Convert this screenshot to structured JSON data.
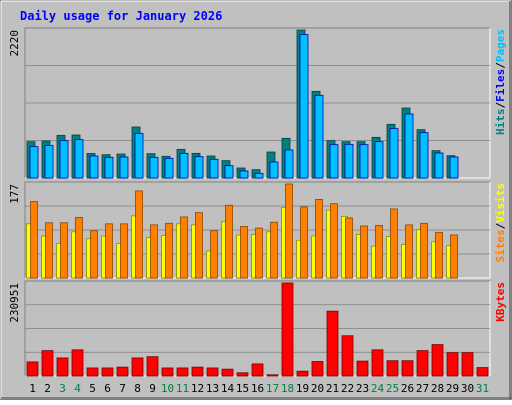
{
  "title": "Daily usage for January 2026",
  "colors": {
    "background": "#ffffff",
    "plot_bg": "#c0c0c0",
    "title": "#0000ff",
    "hits": "#008080",
    "files": "#0000ff",
    "pages": "#00c0ff",
    "sites": "#ff8000",
    "visits": "#ffff00",
    "kbytes": "#ff0000",
    "weekend_label": "#008040",
    "weekday_label": "#000000"
  },
  "chart_data": [
    {
      "type": "bar",
      "panel": "hits-files-pages",
      "ymax_label": "2220",
      "ylim": [
        0,
        2220
      ],
      "legend": [
        {
          "label": "Hits",
          "color": "#008080"
        },
        {
          "label": "Files",
          "color": "#0000ff"
        },
        {
          "label": "Pages",
          "color": "#00c0ff"
        }
      ],
      "categories": [
        "1",
        "2",
        "3",
        "4",
        "5",
        "6",
        "7",
        "8",
        "9",
        "10",
        "11",
        "12",
        "13",
        "14",
        "15",
        "16",
        "17",
        "18",
        "19",
        "20",
        "21",
        "22",
        "23",
        "24",
        "25",
        "26",
        "27",
        "28",
        "29",
        "30",
        "31"
      ],
      "series": [
        {
          "name": "Hits",
          "values": [
            545,
            555,
            640,
            645,
            368,
            350,
            360,
            765,
            365,
            325,
            430,
            370,
            330,
            260,
            150,
            125,
            390,
            595,
            2220,
            1300,
            560,
            545,
            545,
            610,
            805,
            1050,
            725,
            410,
            335,
            0,
            0
          ]
        },
        {
          "name": "Pages",
          "values": [
            470,
            490,
            560,
            575,
            330,
            310,
            315,
            670,
            310,
            295,
            370,
            320,
            280,
            185,
            105,
            70,
            240,
            420,
            2150,
            1240,
            500,
            505,
            500,
            545,
            740,
            960,
            680,
            375,
            315,
            0,
            0
          ]
        }
      ]
    },
    {
      "type": "bar",
      "panel": "sites-visits",
      "ymax_label": "177",
      "ylim": [
        0,
        177
      ],
      "legend": [
        {
          "label": "Sites",
          "color": "#ff8000"
        },
        {
          "label": "Visits",
          "color": "#ffff00"
        }
      ],
      "categories": [
        "1",
        "2",
        "3",
        "4",
        "5",
        "6",
        "7",
        "8",
        "9",
        "10",
        "11",
        "12",
        "13",
        "14",
        "15",
        "16",
        "17",
        "18",
        "19",
        "20",
        "21",
        "22",
        "23",
        "24",
        "25",
        "26",
        "27",
        "28",
        "29",
        "30",
        "31"
      ],
      "series": [
        {
          "name": "Visits",
          "values": [
            102,
            79,
            65,
            87,
            74,
            79,
            65,
            117,
            76,
            80,
            102,
            100,
            51,
            106,
            81,
            82,
            87,
            133,
            71,
            79,
            128,
            116,
            82,
            60,
            78,
            63,
            91,
            68,
            61,
            0,
            0
          ]
        },
        {
          "name": "Sites",
          "values": [
            144,
            104,
            104,
            114,
            89,
            102,
            102,
            164,
            100,
            103,
            115,
            123,
            89,
            137,
            97,
            94,
            105,
            177,
            134,
            148,
            140,
            113,
            98,
            99,
            130,
            100,
            103,
            86,
            81,
            0,
            0
          ]
        }
      ]
    },
    {
      "type": "bar",
      "panel": "kbytes",
      "ymax_label": "230951",
      "ylim": [
        0,
        230951
      ],
      "legend": [
        {
          "label": "KBytes",
          "color": "#ff0000"
        }
      ],
      "categories": [
        "1",
        "2",
        "3",
        "4",
        "5",
        "6",
        "7",
        "8",
        "9",
        "10",
        "11",
        "12",
        "13",
        "14",
        "15",
        "16",
        "17",
        "18",
        "19",
        "20",
        "21",
        "22",
        "23",
        "24",
        "25",
        "26",
        "27",
        "28",
        "29",
        "30",
        "31"
      ],
      "series": [
        {
          "name": "KBytes",
          "values": [
            35000,
            63000,
            45000,
            65000,
            20000,
            20000,
            22000,
            45000,
            48000,
            20000,
            20000,
            22000,
            20000,
            17000,
            8000,
            30000,
            3000,
            230951,
            12000,
            36000,
            161000,
            100000,
            37000,
            65000,
            38000,
            38000,
            63000,
            78000,
            58000,
            58000,
            21000
          ]
        }
      ]
    }
  ],
  "x_labels": [
    {
      "label": "1",
      "weekend": false
    },
    {
      "label": "2",
      "weekend": false
    },
    {
      "label": "3",
      "weekend": true
    },
    {
      "label": "4",
      "weekend": true
    },
    {
      "label": "5",
      "weekend": false
    },
    {
      "label": "6",
      "weekend": false
    },
    {
      "label": "7",
      "weekend": false
    },
    {
      "label": "8",
      "weekend": false
    },
    {
      "label": "9",
      "weekend": false
    },
    {
      "label": "10",
      "weekend": true
    },
    {
      "label": "11",
      "weekend": true
    },
    {
      "label": "12",
      "weekend": false
    },
    {
      "label": "13",
      "weekend": false
    },
    {
      "label": "14",
      "weekend": false
    },
    {
      "label": "15",
      "weekend": false
    },
    {
      "label": "16",
      "weekend": false
    },
    {
      "label": "17",
      "weekend": true
    },
    {
      "label": "18",
      "weekend": true
    },
    {
      "label": "19",
      "weekend": false
    },
    {
      "label": "20",
      "weekend": false
    },
    {
      "label": "21",
      "weekend": false
    },
    {
      "label": "22",
      "weekend": false
    },
    {
      "label": "23",
      "weekend": false
    },
    {
      "label": "24",
      "weekend": true
    },
    {
      "label": "25",
      "weekend": true
    },
    {
      "label": "26",
      "weekend": false
    },
    {
      "label": "27",
      "weekend": false
    },
    {
      "label": "28",
      "weekend": false
    },
    {
      "label": "29",
      "weekend": false
    },
    {
      "label": "30",
      "weekend": false
    },
    {
      "label": "31",
      "weekend": true
    }
  ]
}
